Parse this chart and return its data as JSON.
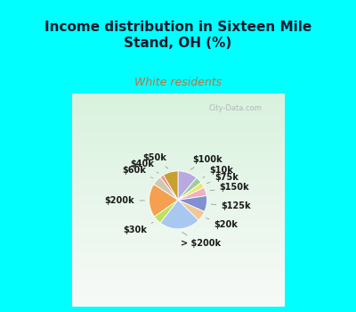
{
  "title": "Income distribution in Sixteen Mile\nStand, OH (%)",
  "subtitle": "White residents",
  "bg_cyan": "#00FFFF",
  "watermark": "City-Data.com",
  "slices": [
    {
      "label": "$100k",
      "value": 10.5,
      "color": "#b8aae0"
    },
    {
      "label": "$10k",
      "value": 3.5,
      "color": "#a0cca0"
    },
    {
      "label": "$75k",
      "value": 3.0,
      "color": "#e8e870"
    },
    {
      "label": "$150k",
      "value": 4.5,
      "color": "#f0b0c0"
    },
    {
      "label": "$125k",
      "value": 8.5,
      "color": "#8090d0"
    },
    {
      "label": "$20k",
      "value": 5.5,
      "color": "#f0c898"
    },
    {
      "label": "> $200k",
      "value": 22.0,
      "color": "#a8c8f0"
    },
    {
      "label": "$30k",
      "value": 4.5,
      "color": "#c0e060"
    },
    {
      "label": "$200k",
      "value": 18.0,
      "color": "#f5a050"
    },
    {
      "label": "$60k",
      "value": 5.0,
      "color": "#d0c8b0"
    },
    {
      "label": "$40k",
      "value": 2.0,
      "color": "#f09090"
    },
    {
      "label": "$50k",
      "value": 8.0,
      "color": "#c8a030"
    }
  ],
  "title_color": "#1a1a2e",
  "subtitle_color": "#c07040",
  "label_color": "#1a1a1a",
  "title_fontsize": 11,
  "subtitle_fontsize": 9,
  "label_fontsize": 7
}
